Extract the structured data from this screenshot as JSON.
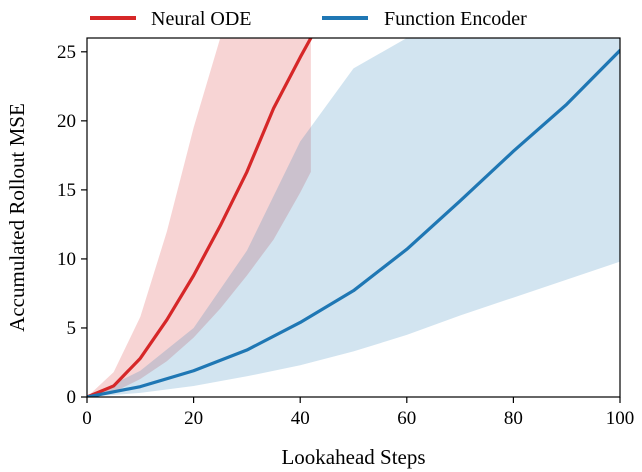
{
  "chart_data": {
    "type": "line",
    "xlabel": "Lookahead Steps",
    "ylabel": "Accumulated Rollout MSE",
    "xlim": [
      0,
      100
    ],
    "ylim": [
      0,
      26
    ],
    "xticks": [
      0,
      20,
      40,
      60,
      80,
      100
    ],
    "yticks": [
      0,
      5,
      10,
      15,
      20,
      25
    ],
    "grid": false,
    "legend": "top, outside plot, horizontal",
    "series": [
      {
        "name": "Neural ODE",
        "color": "#d62728",
        "band_color": "#f4c6c7",
        "x": [
          0,
          5,
          10,
          15,
          20,
          25,
          30,
          35,
          40,
          42
        ],
        "mean": [
          0,
          0.8,
          2.8,
          5.6,
          8.8,
          12.4,
          16.3,
          20.9,
          24.6,
          26
        ],
        "band_upper": [
          0,
          1.8,
          5.8,
          12.0,
          19.5,
          26,
          26,
          26,
          26,
          26
        ],
        "band_lower": [
          0,
          0.35,
          1.3,
          2.6,
          4.3,
          6.4,
          8.8,
          11.4,
          14.8,
          16.3
        ]
      },
      {
        "name": "Function Encoder",
        "color": "#1f77b4",
        "band_color": "#c7dcec",
        "x": [
          0,
          10,
          20,
          30,
          40,
          50,
          60,
          70,
          80,
          90,
          100
        ],
        "mean": [
          0,
          0.75,
          1.9,
          3.4,
          5.4,
          7.7,
          10.7,
          14.2,
          17.8,
          21.2,
          25.1
        ],
        "band_upper": [
          0,
          1.9,
          5.0,
          10.6,
          18.5,
          23.8,
          26,
          26,
          26,
          26,
          26
        ],
        "band_lower": [
          0,
          0.3,
          0.8,
          1.5,
          2.3,
          3.3,
          4.5,
          5.9,
          7.2,
          8.5,
          9.8
        ]
      }
    ]
  }
}
